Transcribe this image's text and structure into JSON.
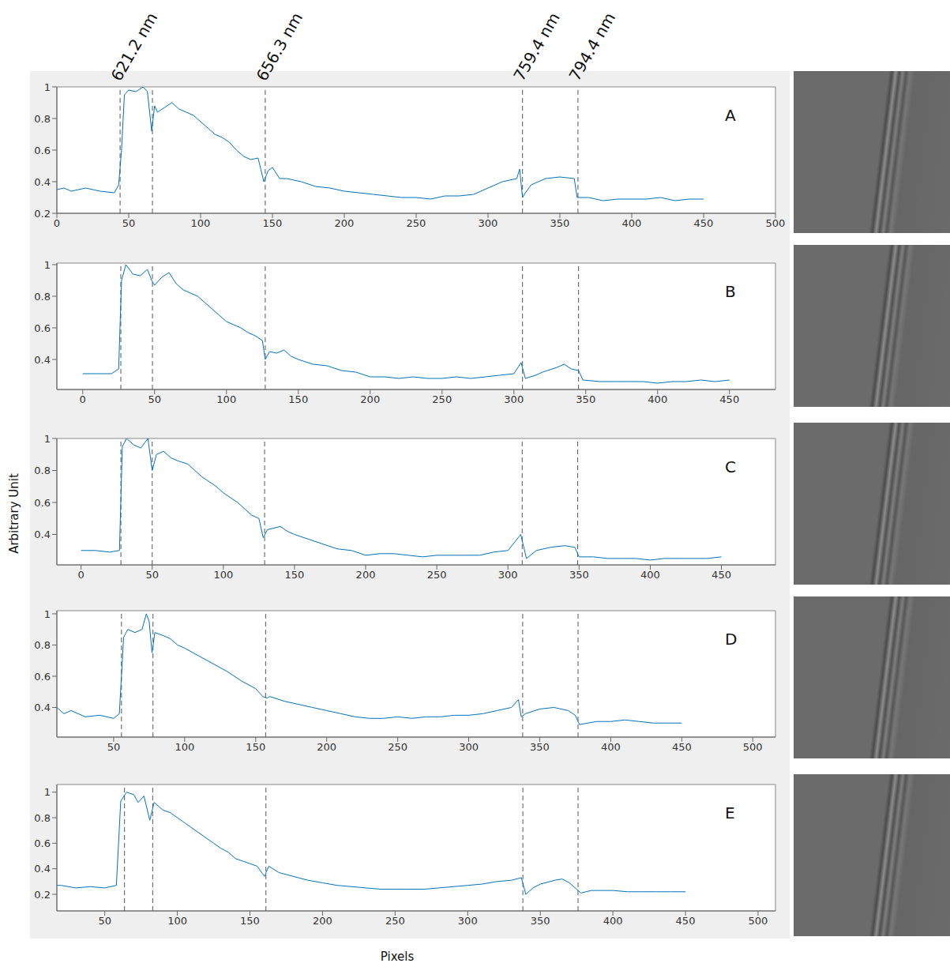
{
  "x_label": "Pixels",
  "y_label": "Arbitrary Unit",
  "reference_lines": [
    {
      "label": "621.2 nm",
      "line_style": "dashed",
      "x": [
        44,
        26.5,
        28,
        55.5,
        63.6
      ]
    },
    {
      "label": null,
      "line_style": "dashed",
      "x": [
        66.5,
        48.5,
        50,
        77.7,
        83
      ]
    },
    {
      "label": "656.3 nm",
      "line_style": "dashed",
      "x": [
        145,
        127,
        129,
        157,
        161
      ]
    },
    {
      "label": "759.4 nm",
      "line_style": "dashed",
      "x": [
        324,
        306,
        310,
        338,
        338
      ]
    },
    {
      "label": "794.4 nm",
      "line_style": "dashed",
      "x": [
        362.6,
        345,
        349,
        377,
        376
      ]
    }
  ],
  "chart_data": [
    {
      "type": "line",
      "title": "A",
      "color": "#0072bd",
      "grid": false,
      "xlim": [
        0,
        500
      ],
      "xticks": [
        0,
        50,
        100,
        150,
        200,
        250,
        300,
        350,
        400,
        450,
        500
      ],
      "ylim": [
        0.2,
        1
      ],
      "yticks": [
        0.2,
        0.4,
        0.6,
        0.8,
        1
      ],
      "x": [
        0,
        5,
        10,
        20,
        30,
        40,
        43,
        45,
        47,
        50,
        55,
        60,
        63,
        66,
        68,
        70,
        75,
        80,
        85,
        90,
        95,
        100,
        105,
        110,
        115,
        120,
        125,
        130,
        135,
        140,
        144,
        147,
        150,
        155,
        160,
        170,
        180,
        190,
        200,
        210,
        220,
        230,
        240,
        250,
        260,
        270,
        280,
        290,
        300,
        310,
        320,
        322,
        324,
        326,
        330,
        340,
        350,
        360,
        362,
        370,
        380,
        390,
        400,
        410,
        420,
        430,
        440,
        450
      ],
      "values": [
        0.35,
        0.36,
        0.34,
        0.36,
        0.34,
        0.33,
        0.38,
        0.6,
        0.95,
        0.98,
        0.97,
        1.0,
        0.97,
        0.72,
        0.88,
        0.84,
        0.87,
        0.9,
        0.86,
        0.84,
        0.82,
        0.78,
        0.74,
        0.7,
        0.68,
        0.65,
        0.6,
        0.56,
        0.54,
        0.55,
        0.4,
        0.47,
        0.49,
        0.42,
        0.42,
        0.4,
        0.37,
        0.36,
        0.34,
        0.33,
        0.32,
        0.31,
        0.3,
        0.3,
        0.29,
        0.31,
        0.31,
        0.32,
        0.36,
        0.4,
        0.42,
        0.48,
        0.3,
        0.33,
        0.38,
        0.42,
        0.43,
        0.42,
        0.3,
        0.3,
        0.28,
        0.29,
        0.29,
        0.29,
        0.3,
        0.28,
        0.29,
        0.29
      ]
    },
    {
      "type": "line",
      "title": "B",
      "color": "#0072bd",
      "grid": false,
      "xlim": [
        -18,
        482
      ],
      "xticks": [
        0,
        50,
        100,
        150,
        200,
        250,
        300,
        350,
        400,
        450
      ],
      "ylim": [
        0.21,
        1.01
      ],
      "yticks": [
        0.4,
        0.6,
        0.8,
        1
      ],
      "x": [
        0,
        10,
        20,
        25,
        27,
        30,
        35,
        40,
        45,
        48,
        50,
        55,
        60,
        65,
        70,
        75,
        80,
        85,
        90,
        95,
        100,
        105,
        110,
        115,
        120,
        125,
        127,
        130,
        135,
        140,
        145,
        150,
        160,
        170,
        180,
        190,
        200,
        210,
        220,
        230,
        240,
        250,
        260,
        270,
        280,
        290,
        300,
        305,
        308,
        315,
        320,
        330,
        335,
        340,
        345,
        348,
        360,
        370,
        380,
        390,
        400,
        410,
        420,
        430,
        440,
        450
      ],
      "values": [
        0.31,
        0.31,
        0.31,
        0.34,
        0.9,
        1.0,
        0.94,
        0.93,
        0.97,
        0.9,
        0.87,
        0.92,
        0.95,
        0.88,
        0.84,
        0.82,
        0.8,
        0.76,
        0.72,
        0.68,
        0.64,
        0.62,
        0.6,
        0.57,
        0.55,
        0.52,
        0.4,
        0.45,
        0.44,
        0.46,
        0.42,
        0.4,
        0.37,
        0.36,
        0.33,
        0.32,
        0.29,
        0.29,
        0.28,
        0.29,
        0.28,
        0.28,
        0.29,
        0.28,
        0.29,
        0.3,
        0.31,
        0.38,
        0.28,
        0.3,
        0.32,
        0.35,
        0.37,
        0.34,
        0.33,
        0.27,
        0.26,
        0.26,
        0.26,
        0.26,
        0.25,
        0.26,
        0.26,
        0.27,
        0.26,
        0.27
      ]
    },
    {
      "type": "line",
      "title": "C",
      "color": "#0072bd",
      "grid": false,
      "xlim": [
        -17,
        488
      ],
      "xticks": [
        0,
        50,
        100,
        150,
        200,
        250,
        300,
        350,
        400,
        450
      ],
      "ylim": [
        0.21,
        1.0
      ],
      "yticks": [
        0.4,
        0.6,
        0.8,
        1
      ],
      "x": [
        0,
        10,
        20,
        27,
        29,
        32,
        37,
        42,
        47,
        50,
        53,
        58,
        63,
        68,
        75,
        80,
        85,
        90,
        95,
        100,
        105,
        110,
        115,
        120,
        125,
        128,
        131,
        140,
        145,
        150,
        160,
        170,
        180,
        190,
        200,
        210,
        220,
        230,
        240,
        250,
        260,
        270,
        280,
        290,
        300,
        309,
        313,
        320,
        330,
        340,
        347,
        350,
        360,
        370,
        380,
        390,
        400,
        410,
        420,
        430,
        440,
        450
      ],
      "values": [
        0.3,
        0.3,
        0.29,
        0.3,
        0.95,
        1.0,
        0.96,
        0.94,
        1.0,
        0.8,
        0.9,
        0.92,
        0.88,
        0.86,
        0.84,
        0.8,
        0.76,
        0.73,
        0.7,
        0.66,
        0.63,
        0.6,
        0.56,
        0.52,
        0.5,
        0.38,
        0.43,
        0.45,
        0.42,
        0.4,
        0.37,
        0.34,
        0.31,
        0.3,
        0.27,
        0.28,
        0.28,
        0.27,
        0.26,
        0.27,
        0.27,
        0.27,
        0.27,
        0.29,
        0.3,
        0.4,
        0.25,
        0.3,
        0.32,
        0.33,
        0.32,
        0.26,
        0.26,
        0.25,
        0.25,
        0.25,
        0.24,
        0.25,
        0.25,
        0.25,
        0.25,
        0.26
      ]
    },
    {
      "type": "line",
      "title": "D",
      "color": "#0072bd",
      "grid": false,
      "xlim": [
        10,
        516
      ],
      "xticks": [
        50,
        100,
        150,
        200,
        250,
        300,
        350,
        400,
        450,
        500
      ],
      "ylim": [
        0.21,
        1.02
      ],
      "yticks": [
        0.4,
        0.6,
        0.8,
        1
      ],
      "x": [
        10,
        15,
        20,
        30,
        40,
        50,
        54,
        57,
        60,
        65,
        70,
        73,
        75,
        77,
        79,
        85,
        90,
        95,
        100,
        110,
        120,
        130,
        140,
        150,
        155,
        158,
        160,
        170,
        180,
        190,
        200,
        210,
        220,
        230,
        240,
        250,
        260,
        270,
        280,
        290,
        300,
        310,
        320,
        330,
        335,
        337,
        340,
        350,
        360,
        370,
        375,
        378,
        390,
        400,
        410,
        420,
        430,
        440,
        450
      ],
      "values": [
        0.4,
        0.36,
        0.38,
        0.34,
        0.35,
        0.33,
        0.36,
        0.85,
        0.9,
        0.88,
        0.9,
        1.0,
        0.95,
        0.75,
        0.88,
        0.86,
        0.84,
        0.8,
        0.78,
        0.73,
        0.68,
        0.63,
        0.57,
        0.52,
        0.47,
        0.46,
        0.47,
        0.44,
        0.42,
        0.4,
        0.38,
        0.36,
        0.34,
        0.33,
        0.33,
        0.34,
        0.33,
        0.34,
        0.34,
        0.35,
        0.35,
        0.36,
        0.38,
        0.4,
        0.45,
        0.34,
        0.36,
        0.39,
        0.4,
        0.38,
        0.35,
        0.29,
        0.31,
        0.31,
        0.32,
        0.31,
        0.3,
        0.3,
        0.3
      ]
    },
    {
      "type": "line",
      "title": "E",
      "color": "#0072bd",
      "grid": false,
      "xlim": [
        17,
        512
      ],
      "xticks": [
        50,
        100,
        150,
        200,
        250,
        300,
        350,
        400,
        450,
        500
      ],
      "ylim": [
        0.07,
        1.06
      ],
      "yticks": [
        0.2,
        0.4,
        0.6,
        0.8,
        1
      ],
      "x": [
        15,
        20,
        30,
        40,
        50,
        58,
        61,
        65,
        70,
        73,
        77,
        81,
        84,
        90,
        95,
        100,
        105,
        110,
        115,
        120,
        125,
        130,
        135,
        140,
        145,
        150,
        155,
        160,
        163,
        170,
        180,
        190,
        200,
        210,
        220,
        230,
        240,
        250,
        260,
        270,
        280,
        290,
        300,
        310,
        320,
        330,
        337,
        340,
        345,
        350,
        360,
        365,
        370,
        378,
        385,
        390,
        400,
        410,
        420,
        430,
        440,
        450
      ],
      "values": [
        0.27,
        0.27,
        0.25,
        0.26,
        0.25,
        0.27,
        0.93,
        1.0,
        0.98,
        0.92,
        0.97,
        0.78,
        0.92,
        0.86,
        0.84,
        0.8,
        0.76,
        0.72,
        0.68,
        0.64,
        0.6,
        0.56,
        0.53,
        0.48,
        0.46,
        0.44,
        0.42,
        0.34,
        0.42,
        0.37,
        0.34,
        0.31,
        0.29,
        0.27,
        0.26,
        0.25,
        0.24,
        0.24,
        0.24,
        0.24,
        0.25,
        0.26,
        0.27,
        0.28,
        0.3,
        0.31,
        0.33,
        0.2,
        0.25,
        0.28,
        0.31,
        0.32,
        0.29,
        0.21,
        0.23,
        0.23,
        0.23,
        0.22,
        0.22,
        0.22,
        0.22,
        0.22
      ]
    }
  ]
}
